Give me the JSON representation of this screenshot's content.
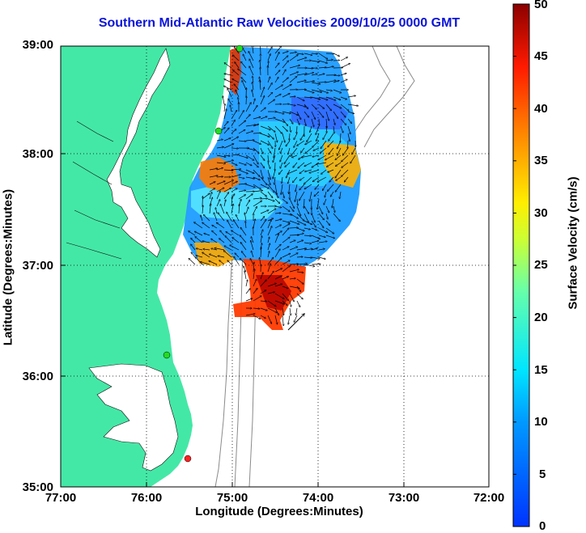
{
  "title": "Southern Mid-Atlantic Raw Velocities 2009/10/25 0000 GMT",
  "xaxis": {
    "label": "Longitude (Degrees:Minutes)",
    "ticks": [
      "77:00",
      "76:00",
      "75:00",
      "74:00",
      "73:00",
      "72:00"
    ]
  },
  "yaxis": {
    "label": "Latitude (Degrees:Minutes)",
    "ticks": [
      "39:00",
      "38:00",
      "37:00",
      "36:00",
      "35:00"
    ]
  },
  "colorbar": {
    "label": "Surface Velocity (cm/s)",
    "ticks": [
      "50",
      "45",
      "40",
      "35",
      "30",
      "25",
      "20",
      "15",
      "10",
      "5",
      "0"
    ],
    "range": [
      0,
      50
    ],
    "colormap": "jet"
  },
  "map": {
    "lon_range": [
      -77,
      -72
    ],
    "lat_range": [
      35,
      39
    ],
    "land_color": "#44e8a6",
    "grid": "dotted"
  },
  "stations": [
    {
      "color": "#22dd22"
    },
    {
      "color": "#22dd22"
    },
    {
      "color": "#22dd22"
    },
    {
      "color": "#ff2222"
    }
  ]
}
